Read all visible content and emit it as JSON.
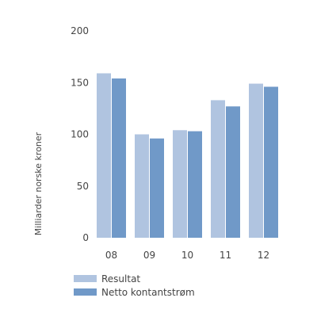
{
  "chart_data": {
    "type": "bar",
    "categories": [
      "08",
      "09",
      "10",
      "11",
      "12"
    ],
    "series": [
      {
        "name": "Resultat",
        "values": [
          159,
          100,
          104,
          133,
          149
        ],
        "color": "#b0c4e0"
      },
      {
        "name": "Netto kontantstrøm",
        "values": [
          154,
          96,
          103,
          127,
          146
        ],
        "color": "#7099c8"
      }
    ],
    "ylabel": "Milliarder norske kroner",
    "ylim": [
      0,
      200
    ],
    "yticks": [
      0,
      50,
      100,
      150,
      200
    ],
    "grid": false,
    "legend": "bottom-left"
  }
}
